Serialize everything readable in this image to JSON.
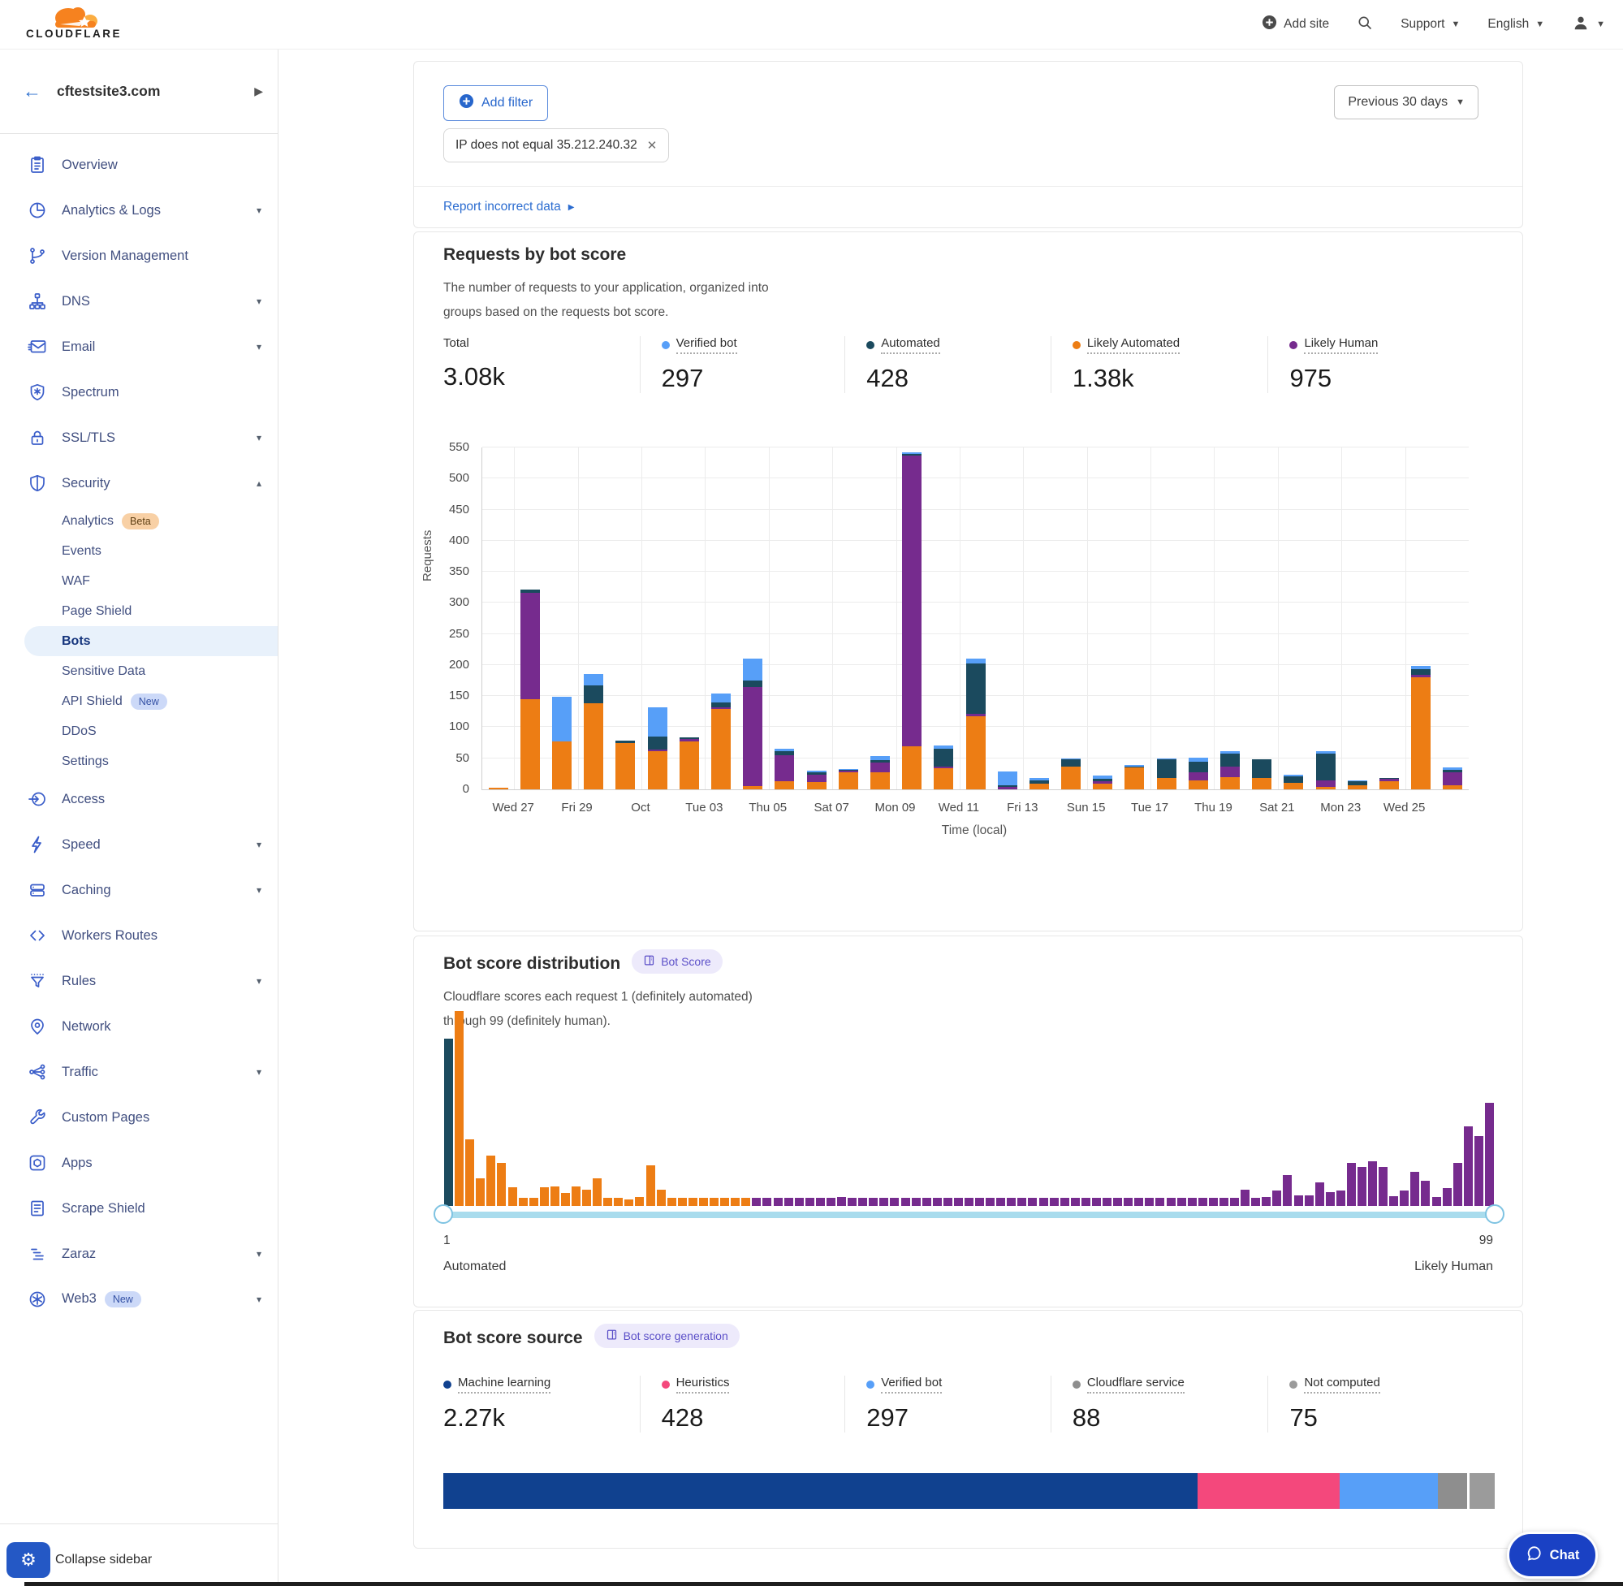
{
  "header": {
    "brand": "CLOUDFLARE",
    "add_site": "Add site",
    "support": "Support",
    "language": "English"
  },
  "sidebar": {
    "site": "cftestsite3.com",
    "collapse": "Collapse sidebar",
    "items": [
      {
        "label": "Overview",
        "icon": "overview",
        "level": 1
      },
      {
        "label": "Analytics & Logs",
        "icon": "analytics-logs",
        "level": 1,
        "caret": "down"
      },
      {
        "label": "Version Management",
        "icon": "version-management",
        "level": 1
      },
      {
        "label": "DNS",
        "icon": "dns",
        "level": 1,
        "caret": "down"
      },
      {
        "label": "Email",
        "icon": "email",
        "level": 1,
        "caret": "down"
      },
      {
        "label": "Spectrum",
        "icon": "spectrum",
        "level": 1
      },
      {
        "label": "SSL/TLS",
        "icon": "ssl-tls",
        "level": 1,
        "caret": "down"
      },
      {
        "label": "Security",
        "icon": "security",
        "level": 1,
        "caret": "up"
      },
      {
        "label": "Analytics",
        "level": 2,
        "badge": "Beta",
        "badge_style": "beta"
      },
      {
        "label": "Events",
        "level": 2
      },
      {
        "label": "WAF",
        "level": 2
      },
      {
        "label": "Page Shield",
        "level": 2
      },
      {
        "label": "Bots",
        "level": 2,
        "active": true
      },
      {
        "label": "Sensitive Data",
        "level": 2
      },
      {
        "label": "API Shield",
        "level": 2,
        "badge": "New",
        "badge_style": "new"
      },
      {
        "label": "DDoS",
        "level": 2
      },
      {
        "label": "Settings",
        "level": 2
      },
      {
        "label": "Access",
        "icon": "access",
        "level": 1
      },
      {
        "label": "Speed",
        "icon": "speed",
        "level": 1,
        "caret": "down"
      },
      {
        "label": "Caching",
        "icon": "caching",
        "level": 1,
        "caret": "down"
      },
      {
        "label": "Workers Routes",
        "icon": "workers-routes",
        "level": 1
      },
      {
        "label": "Rules",
        "icon": "rules",
        "level": 1,
        "caret": "down"
      },
      {
        "label": "Network",
        "icon": "network",
        "level": 1
      },
      {
        "label": "Traffic",
        "icon": "traffic",
        "level": 1,
        "caret": "down"
      },
      {
        "label": "Custom Pages",
        "icon": "custom-pages",
        "level": 1
      },
      {
        "label": "Apps",
        "icon": "apps",
        "level": 1
      },
      {
        "label": "Scrape Shield",
        "icon": "scrape-shield",
        "level": 1
      },
      {
        "label": "Zaraz",
        "icon": "zaraz",
        "level": 1,
        "caret": "down"
      },
      {
        "label": "Web3",
        "icon": "web3",
        "level": 1,
        "badge": "New",
        "badge_style": "new",
        "caret": "down"
      }
    ]
  },
  "filters": {
    "add_filter": "Add filter",
    "chip": "IP does not equal 35.212.240.32",
    "date_range": "Previous 30 days",
    "report_link": "Report incorrect data"
  },
  "requests_card": {
    "title": "Requests by bot score",
    "desc_line1": "The number of requests to your application, organized into",
    "desc_line2": "groups based on the requests bot score.",
    "stats": [
      {
        "label": "Total",
        "value": "3.08k",
        "color": null
      },
      {
        "label": "Verified bot",
        "value": "297",
        "color": "#579ff8"
      },
      {
        "label": "Automated",
        "value": "428",
        "color": "#1b4a5e"
      },
      {
        "label": "Likely Automated",
        "value": "1.38k",
        "color": "#ed7d14"
      },
      {
        "label": "Likely Human",
        "value": "975",
        "color": "#762b8e"
      }
    ]
  },
  "distribution_card": {
    "title": "Bot score distribution",
    "badge": "Bot Score",
    "desc_line1": "Cloudflare scores each request 1 (definitely automated)",
    "desc_line2": "through 99 (definitely human).",
    "slider": {
      "min": "1",
      "max": "99",
      "min_label": "Automated",
      "max_label": "Likely Human"
    }
  },
  "source_card": {
    "title": "Bot score source",
    "badge": "Bot score generation",
    "stats": [
      {
        "label": "Machine learning",
        "value": "2.27k",
        "color": "#10418f"
      },
      {
        "label": "Heuristics",
        "value": "428",
        "color": "#f4487c"
      },
      {
        "label": "Verified bot",
        "value": "297",
        "color": "#579ff8"
      },
      {
        "label": "Cloudflare service",
        "value": "88",
        "color": "#8e8e8e"
      },
      {
        "label": "Not computed",
        "value": "75",
        "color": "#9b9b9b"
      }
    ]
  },
  "chat": {
    "label": "Chat"
  },
  "chart_data": [
    {
      "id": "requests-by-bot-score",
      "type": "bar",
      "stacked": true,
      "title": "Requests by bot score",
      "xlabel": "Time (local)",
      "ylabel": "Requests",
      "ylim": [
        0,
        550
      ],
      "ytick_step": 50,
      "grid": true,
      "categories": [
        "Tue 26",
        "Wed 27",
        "Thu 28",
        "Fri 29",
        "Sat 30",
        "Oct 01",
        "Mon 02",
        "Tue 03",
        "Wed 04",
        "Thu 05",
        "Fri 06",
        "Sat 07",
        "Sun 08",
        "Mon 09",
        "Tue 10",
        "Wed 11",
        "Thu 12",
        "Fri 13",
        "Sat 14",
        "Sun 15",
        "Mon 16",
        "Tue 17",
        "Wed 18",
        "Thu 19",
        "Fri 20",
        "Sat 21",
        "Sun 22",
        "Mon 23",
        "Tue 24",
        "Wed 25",
        "Thu 26"
      ],
      "tick_indices": [
        1,
        3,
        5,
        7,
        9,
        11,
        13,
        15,
        17,
        19,
        21,
        23,
        25,
        27,
        29
      ],
      "tick_labels": [
        "Wed 27",
        "Fri 29",
        "Oct",
        "Tue 03",
        "Thu 05",
        "Sat 07",
        "Mon 09",
        "Wed 11",
        "Fri 13",
        "Sun 15",
        "Tue 17",
        "Thu 19",
        "Sat 21",
        "Mon 23",
        "Wed 25"
      ],
      "series": [
        {
          "name": "Likely Automated",
          "color": "#ed7d14",
          "values": [
            3,
            145,
            77,
            139,
            75,
            61,
            77,
            129,
            5,
            13,
            12,
            28,
            27,
            69,
            34,
            118,
            0,
            9,
            37,
            9,
            35,
            18,
            15,
            20,
            18,
            11,
            4,
            7,
            13,
            180,
            7
          ]
        },
        {
          "name": "Likely Human",
          "color": "#762b8e",
          "values": [
            0,
            171,
            0,
            0,
            0,
            3,
            4,
            3,
            159,
            42,
            12,
            2,
            16,
            468,
            3,
            4,
            4,
            0,
            0,
            4,
            0,
            0,
            12,
            17,
            0,
            0,
            11,
            0,
            4,
            4,
            20
          ]
        },
        {
          "name": "Automated",
          "color": "#1b4a5e",
          "values": [
            0,
            6,
            0,
            28,
            4,
            21,
            3,
            8,
            11,
            6,
            3,
            2,
            4,
            3,
            29,
            80,
            2,
            6,
            11,
            4,
            2,
            30,
            17,
            20,
            30,
            10,
            42,
            6,
            1,
            10,
            5
          ]
        },
        {
          "name": "Verified bot",
          "color": "#579ff8",
          "values": [
            0,
            0,
            72,
            19,
            0,
            47,
            0,
            14,
            36,
            4,
            3,
            1,
            6,
            2,
            5,
            9,
            23,
            3,
            2,
            5,
            2,
            2,
            7,
            4,
            1,
            3,
            4,
            1,
            0,
            4,
            3
          ]
        }
      ]
    },
    {
      "id": "bot-score-distribution",
      "type": "bar",
      "subtype": "histogram",
      "x_range": [
        1,
        99
      ],
      "note": "values are percent of tallest bar; score 1 = Automated (teal), 2-29 = Likely Automated (orange), 30-99 = Likely Human (purple)",
      "colors": {
        "automated": "#1b4a5e",
        "likely_automated": "#ed7d14",
        "likely_human": "#762b8e"
      },
      "values_percent_of_max": [
        86,
        100,
        34,
        14,
        26,
        22,
        9.5,
        4,
        4,
        9.5,
        10,
        6.5,
        10,
        8.5,
        14,
        4,
        4,
        3.5,
        4.5,
        21,
        8.5,
        4,
        4,
        4,
        4,
        4,
        4,
        4,
        4,
        4,
        4,
        4,
        4,
        4,
        4,
        4,
        4,
        4.5,
        4,
        4,
        4,
        4,
        4,
        4,
        4,
        4,
        4,
        4,
        4,
        4,
        4,
        4,
        4,
        4,
        4,
        4,
        4,
        4,
        4,
        4,
        4,
        4,
        4,
        4,
        4,
        4,
        4,
        4,
        4,
        4,
        4,
        4,
        4,
        4,
        4,
        8.5,
        4,
        4.5,
        8,
        16,
        5.5,
        5.5,
        12,
        7,
        8,
        22,
        20,
        23,
        20,
        5,
        8,
        17.5,
        13,
        4.5,
        9,
        22,
        41,
        36,
        53
      ]
    },
    {
      "id": "bot-score-source",
      "type": "bar",
      "subtype": "horizontal-stacked",
      "total": 3158,
      "segments": [
        {
          "name": "Machine learning",
          "value": 2270,
          "color": "#10418f"
        },
        {
          "name": "Heuristics",
          "value": 428,
          "color": "#f4487c"
        },
        {
          "name": "Verified bot",
          "value": 297,
          "color": "#579ff8"
        },
        {
          "name": "Cloudflare service",
          "value": 88,
          "color": "#8e8e8e"
        },
        {
          "name": "Not computed",
          "value": 75,
          "color": "#9b9b9b"
        }
      ]
    }
  ]
}
